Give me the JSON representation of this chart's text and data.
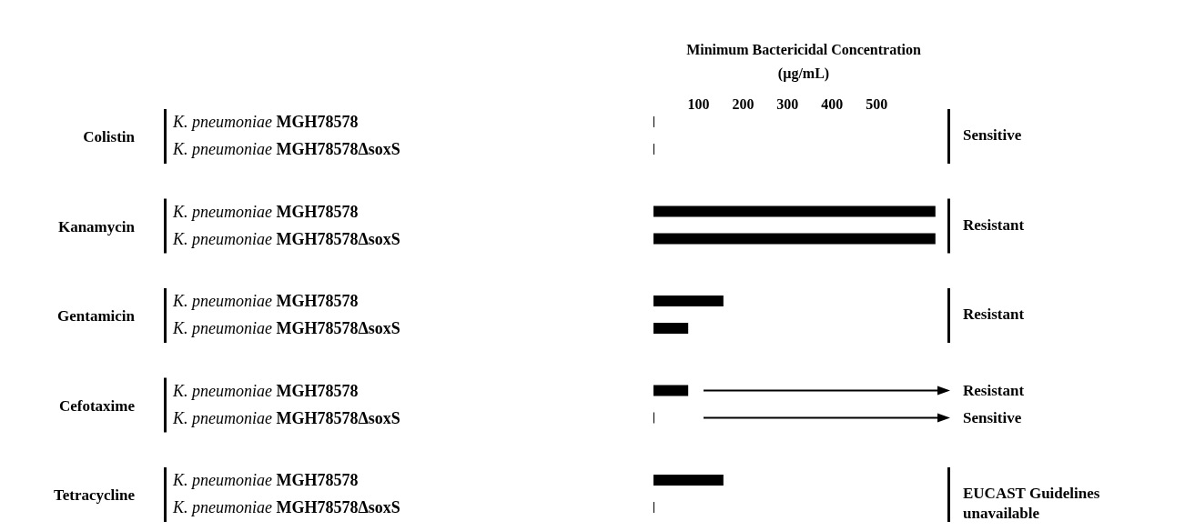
{
  "chart_data": {
    "type": "bar",
    "orientation": "horizontal",
    "title": "Minimum Bactericidal Concentration",
    "xlabel": "(µg/mL)",
    "categories": [
      "K. pneumoniae MGH78578",
      "K. pneumoniae MGH78578ΔsoxS",
      "K. pneumoniae MGH78578",
      "K. pneumoniae MGH78578ΔsoxS",
      "K. pneumoniae MGH78578",
      "K. pneumoniae MGH78578ΔsoxS",
      "K. pneumoniae MGH78578",
      "K. pneumoniae MGH78578ΔsoxS",
      "K. pneumoniae MGH78578",
      "K. pneumoniae MGH78578ΔsoxS"
    ],
    "series": [
      {
        "color": "#000000",
        "axis": "x2",
        "values": [
          2,
          2,
          633,
          633,
          157,
          78,
          78,
          2,
          157,
          2
        ]
      }
    ],
    "x2lim": [
      0,
      660
    ],
    "x2ticks": [
      100,
      200,
      300,
      400,
      500
    ],
    "annotations": [
      "Colistin",
      "Kanamycin",
      "Gentamicin",
      "Cefotaxime",
      "Tetracycline",
      "Sensitive",
      "Resistant",
      "Resistant",
      "Resistant",
      "Sensitive",
      "EUCAST Guidelines unavailable"
    ]
  }
}
